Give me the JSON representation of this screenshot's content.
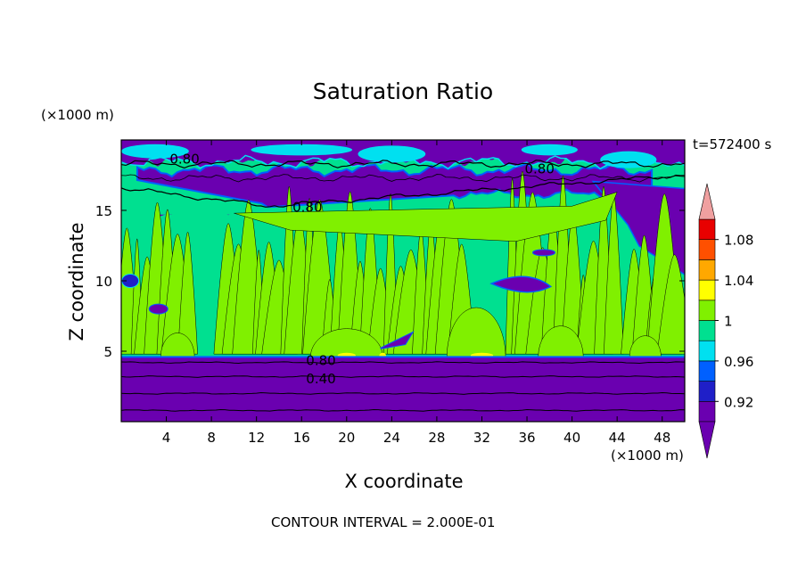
{
  "chart_data": {
    "type": "heatmap",
    "title": "Saturation Ratio",
    "xlabel": "X coordinate",
    "ylabel": "Z coordinate",
    "x_unit": "(×1000 m)",
    "y_unit": "(×1000 m)",
    "time_label": "t=572400 s",
    "footer": "CONTOUR INTERVAL = 2.000E-01",
    "xlim": [
      0,
      50
    ],
    "ylim": [
      0,
      20
    ],
    "x_ticks": [
      "4",
      "8",
      "12",
      "16",
      "20",
      "24",
      "28",
      "32",
      "36",
      "40",
      "44",
      "48"
    ],
    "x_tick_values": [
      4,
      8,
      12,
      16,
      20,
      24,
      28,
      32,
      36,
      40,
      44,
      48
    ],
    "y_ticks": [
      "5",
      "10",
      "15"
    ],
    "y_tick_values": [
      5,
      10,
      15
    ],
    "colorbar": {
      "levels": [
        0.9,
        0.92,
        0.94,
        0.96,
        0.98,
        1.0,
        1.02,
        1.04,
        1.06,
        1.08,
        1.1
      ],
      "labels": [
        "0.92",
        "0.96",
        "1",
        "1.04",
        "1.08"
      ],
      "label_values": [
        0.92,
        0.96,
        1.0,
        1.04,
        1.08
      ],
      "colors": [
        "#6a00b0",
        "#1f1fc8",
        "#0060ff",
        "#00e0f0",
        "#00e090",
        "#80f000",
        "#ffff00",
        "#ffa800",
        "#ff5000",
        "#e80000",
        "#f0a0a0"
      ],
      "under_color": "#6a00b0",
      "over_color": "#f0a0a0"
    },
    "contour_labels": [
      {
        "text": "0.80",
        "x": 4.3,
        "z": 18.7
      },
      {
        "text": "0.80",
        "x": 15.2,
        "z": 15.3
      },
      {
        "text": "0.80",
        "x": 35.8,
        "z": 18.0
      },
      {
        "text": "0.80",
        "x": 16.4,
        "z": 4.4
      },
      {
        "text": "0.40",
        "x": 16.4,
        "z": 3.1
      }
    ],
    "regions": {
      "surface_layer_top_z": 4.6,
      "moist_layer_top_z": 15.0,
      "dry_band_z": [
        15.5,
        17.5
      ],
      "top_dry_z": [
        18.5,
        20.0
      ]
    },
    "surface_contours_z": [
      0.8,
      2.0,
      3.2,
      4.2
    ]
  }
}
